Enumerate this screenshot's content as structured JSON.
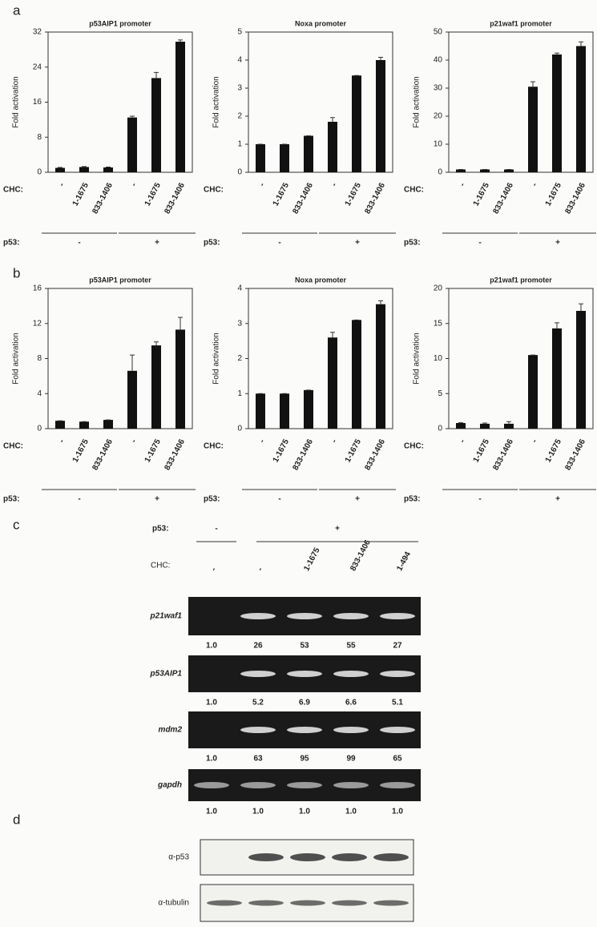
{
  "panel_labels": [
    "a",
    "b",
    "c",
    "d"
  ],
  "chart_data": [
    {
      "type": "bar",
      "title": "p53AIP1 promoter",
      "y_label": "Fold activation",
      "categories": [
        "-",
        "1-1675",
        "833-1406",
        "-",
        "1-1675",
        "833-1406"
      ],
      "values": [
        1,
        1.2,
        1.1,
        12.5,
        21.5,
        29.8
      ],
      "errors": [
        0.1,
        0.1,
        0.1,
        0.3,
        1.3,
        0.4
      ],
      "ylim": [
        0,
        32
      ],
      "yticks": [
        0,
        8,
        16,
        24,
        32
      ],
      "color": "#111111",
      "chc_label": "CHC:",
      "p53_label": "p53:",
      "groups": [
        "-",
        "+"
      ]
    },
    {
      "type": "bar",
      "title": "Noxa promoter",
      "y_label": "Fold activation",
      "categories": [
        "-",
        "1-1675",
        "833-1406",
        "-",
        "1-1675",
        "833-1406"
      ],
      "values": [
        1,
        1,
        1.3,
        1.8,
        3.45,
        4
      ],
      "errors": [
        0,
        0,
        0,
        0.15,
        0,
        0.1
      ],
      "ylim": [
        0,
        5
      ],
      "yticks": [
        0,
        1,
        2,
        3,
        4,
        5
      ],
      "color": "#111111",
      "chc_label": "CHC:",
      "p53_label": "p53:",
      "groups": [
        "-",
        "+"
      ]
    },
    {
      "type": "bar",
      "title": "p21waf1 promoter",
      "y_label": "Fold activation",
      "categories": [
        "-",
        "1-1675",
        "833-1406",
        "-",
        "1-1675",
        "833-1406"
      ],
      "values": [
        1,
        1,
        1,
        30.5,
        42,
        45
      ],
      "errors": [
        0,
        0,
        0,
        1.8,
        0.5,
        1.5
      ],
      "ylim": [
        0,
        50
      ],
      "yticks": [
        0,
        10,
        20,
        30,
        40,
        50
      ],
      "color": "#111111",
      "chc_label": "CHC:",
      "p53_label": "p53:",
      "groups": [
        "-",
        "+"
      ]
    },
    {
      "type": "bar",
      "title": "p53AIP1 promoter",
      "y_label": "Fold activation",
      "categories": [
        "-",
        "1-1675",
        "833-1406",
        "-",
        "1-1675",
        "833-1406"
      ],
      "values": [
        0.9,
        0.8,
        1,
        6.6,
        9.5,
        11.3
      ],
      "errors": [
        0,
        0,
        0,
        1.8,
        0.4,
        1.4
      ],
      "ylim": [
        0,
        16
      ],
      "yticks": [
        0,
        4,
        8,
        12,
        16
      ],
      "color": "#111111",
      "chc_label": "CHC:",
      "p53_label": "p53:",
      "groups": [
        "-",
        "+"
      ]
    },
    {
      "type": "bar",
      "title": "Noxa promoter",
      "y_label": "Fold activation",
      "categories": [
        "-",
        "1-1675",
        "833-1406",
        "-",
        "1-1675",
        "833-1406"
      ],
      "values": [
        1,
        1,
        1.1,
        2.6,
        3.1,
        3.55
      ],
      "errors": [
        0,
        0,
        0,
        0.15,
        0,
        0.1
      ],
      "ylim": [
        0,
        4
      ],
      "yticks": [
        0,
        1,
        2,
        3,
        4
      ],
      "color": "#111111",
      "chc_label": "CHC:",
      "p53_label": "p53:",
      "groups": [
        "-",
        "+"
      ]
    },
    {
      "type": "bar",
      "title": "p21waf1 promoter",
      "y_label": "Fold activation",
      "categories": [
        "-",
        "1-1675",
        "833-1406",
        "-",
        "1-1675",
        "833-1406"
      ],
      "values": [
        0.8,
        0.7,
        0.7,
        10.5,
        14.3,
        16.8
      ],
      "errors": [
        0.05,
        0.1,
        0.3,
        0,
        0.8,
        1
      ],
      "ylim": [
        0,
        20
      ],
      "yticks": [
        0,
        5,
        10,
        15,
        20
      ],
      "color": "#111111",
      "chc_label": "CHC:",
      "p53_label": "p53:",
      "groups": [
        "-",
        "+"
      ]
    }
  ],
  "gel": {
    "p53_label": "p53:",
    "p53_groups": [
      "-",
      "+"
    ],
    "chc_label": "CHC:",
    "lanes": [
      "-",
      "-",
      "1-1675",
      "833-1406",
      "1-494"
    ],
    "rows": [
      {
        "label": "p21waf1",
        "quantities": [
          "1.0",
          "26",
          "53",
          "55",
          "27"
        ]
      },
      {
        "label": "p53AIP1",
        "quantities": [
          "1.0",
          "5.2",
          "6.9",
          "6.6",
          "5.1"
        ]
      },
      {
        "label": "mdm2",
        "quantities": [
          "1.0",
          "63",
          "95",
          "99",
          "65"
        ]
      },
      {
        "label": "gapdh",
        "quantities": [
          "1.0",
          "1.0",
          "1.0",
          "1.0",
          "1.0"
        ]
      }
    ]
  },
  "western": {
    "rows": [
      "α-p53",
      "α-tubulin"
    ]
  }
}
